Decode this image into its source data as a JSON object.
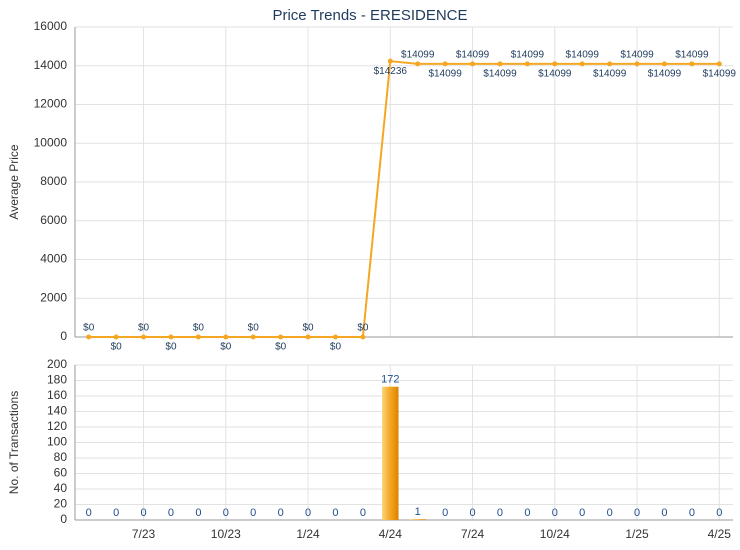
{
  "chart_data": [
    {
      "type": "line",
      "title": "Price Trends - ERESIDENCE",
      "y_label": "Average Price",
      "categories": [
        null,
        null,
        "7/23",
        null,
        null,
        "10/23",
        null,
        null,
        "1/24",
        null,
        null,
        "4/24",
        null,
        null,
        "7/24",
        null,
        null,
        "10/24",
        null,
        null,
        "1/25",
        null,
        null,
        "4/25"
      ],
      "values": [
        0,
        0,
        0,
        0,
        0,
        0,
        0,
        0,
        0,
        0,
        0,
        14236,
        14099,
        14099,
        14099,
        14099,
        14099,
        14099,
        14099,
        14099,
        14099,
        14099,
        14099,
        14099
      ],
      "value_labels": [
        "$0",
        "$0",
        "$0",
        "$0",
        "$0",
        "$0",
        "$0",
        "$0",
        "$0",
        "$0",
        "$0",
        "$14236",
        "$14099",
        "$14099",
        "$14099",
        "$14099",
        "$14099",
        "$14099",
        "$14099",
        "$14099",
        "$14099",
        "$14099",
        "$14099",
        "$14099"
      ],
      "color": "#f5a623",
      "ylim": [
        0,
        16000
      ],
      "yticks": [
        0,
        2000,
        4000,
        6000,
        8000,
        10000,
        12000,
        14000,
        16000
      ],
      "grid": true
    },
    {
      "type": "bar",
      "y_label": "No. of Transactions",
      "categories": [
        null,
        null,
        "7/23",
        null,
        null,
        "10/23",
        null,
        null,
        "1/24",
        null,
        null,
        "4/24",
        null,
        null,
        "7/24",
        null,
        null,
        "10/24",
        null,
        null,
        "1/25",
        null,
        null,
        "4/25"
      ],
      "values": [
        0,
        0,
        0,
        0,
        0,
        0,
        0,
        0,
        0,
        0,
        0,
        172,
        1,
        0,
        0,
        0,
        0,
        0,
        0,
        0,
        0,
        0,
        0,
        0
      ],
      "color": "#f0a000",
      "ylim": [
        0,
        200
      ],
      "yticks": [
        0,
        20,
        40,
        60,
        80,
        100,
        120,
        140,
        160,
        180,
        200
      ],
      "grid": true
    }
  ]
}
